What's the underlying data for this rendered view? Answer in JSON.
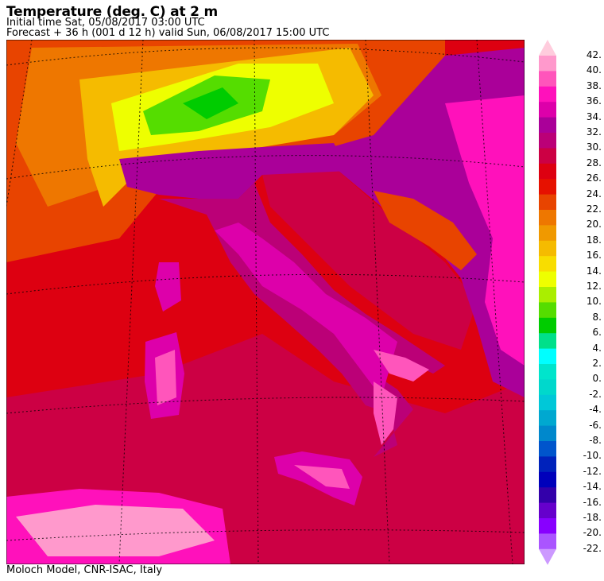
{
  "header": {
    "title": "Temperature (deg. C) at 2 m",
    "initial_time": "Initial time  Sat, 05/08/2017  03:00 UTC",
    "forecast": "Forecast  +  36 h  (001 d 12 h)  valid Sun, 06/08/2017 15:00 UTC"
  },
  "footer": {
    "credit": "Moloch Model, CNR-ISAC, Italy"
  },
  "colorbar": {
    "labels": [
      "42.",
      "40.",
      "38.",
      "36.",
      "34.",
      "32.",
      "30.",
      "28.",
      "26.",
      "24.",
      "22.",
      "20.",
      "18.",
      "16.",
      "14.",
      "12.",
      "10.",
      "8.",
      "6.",
      "4.",
      "2.",
      "0.",
      "-2.",
      "-4.",
      "-6.",
      "-8.",
      "-10.",
      "-12.",
      "-14.",
      "-16.",
      "-18.",
      "-20.",
      "-22."
    ],
    "above_color": "#ffccdd",
    "below_color": "#cc99ff",
    "colors": [
      "#ff99cc",
      "#ff55bb",
      "#ff11bb",
      "#dd00aa",
      "#aa0099",
      "#bb0077",
      "#cc0044",
      "#dd0011",
      "#e61100",
      "#e84400",
      "#ee7700",
      "#f09900",
      "#f5bb00",
      "#f8dd00",
      "#eeff00",
      "#aaee00",
      "#55dd00",
      "#00cc00",
      "#00e08a",
      "#00ffff",
      "#00e5cc",
      "#00d8cc",
      "#00c8d8",
      "#00a8d0",
      "#0088cc",
      "#0055cc",
      "#0022bb",
      "#0000bb",
      "#3300aa",
      "#6600cc",
      "#8800ff",
      "#aa55ff"
    ]
  }
}
